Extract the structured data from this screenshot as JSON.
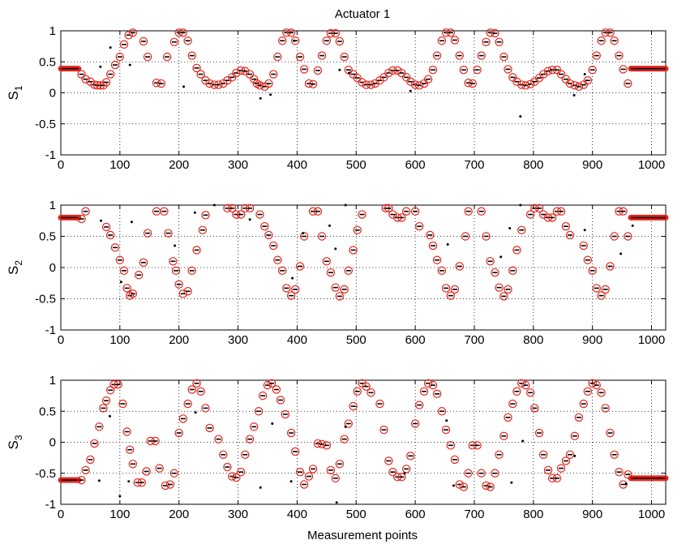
{
  "chart_data": {
    "type": "scatter",
    "title": "Actuator 1",
    "xlabel": "Measurement points",
    "xlim": [
      0,
      1024
    ],
    "x_ticks": [
      "0",
      "100",
      "200",
      "300",
      "400",
      "500",
      "600",
      "700",
      "800",
      "900",
      "1000"
    ],
    "y_ticks": [
      "-1",
      "-0.5",
      "0",
      "0.5",
      "1"
    ],
    "grid": true,
    "colors": {
      "marker_ring": "#e8231b",
      "marker_dot": "#000000",
      "line": "#000000"
    },
    "panels": [
      {
        "ylabel": "S",
        "ylabel_sub": "1",
        "ylim": [
          -1,
          1
        ],
        "plateau_start": {
          "x": [
            0,
            30
          ],
          "y": 0.39
        },
        "plateau_end": {
          "x": [
            965,
            1024
          ],
          "y": 0.39
        },
        "series": [
          {
            "marker": "ring-dot",
            "x": [
              35,
              42,
              50,
              57,
              62,
              67,
              72,
              77,
              84,
              92,
              100,
              107,
              115,
              122,
              140,
              147,
              162,
              170,
              180,
              192,
              200,
              207,
              215,
              222,
              230,
              237,
              245,
              252,
              260,
              267,
              275,
              282,
              290,
              297,
              305,
              312,
              320,
              327,
              332,
              337,
              345,
              352,
              360,
              367,
              375,
              382,
              390,
              397,
              405,
              412,
              420,
              427,
              435,
              442,
              450,
              457,
              465,
              472,
              480,
              487,
              495,
              502,
              510,
              517,
              525,
              532,
              540,
              547,
              555,
              562,
              570,
              577,
              585,
              592,
              600,
              607,
              615,
              622,
              630,
              637,
              645,
              652,
              660,
              667,
              675,
              682,
              690,
              697,
              705,
              712,
              720,
              727,
              735,
              742,
              750,
              757,
              765,
              772,
              780,
              787,
              795,
              802,
              810,
              817,
              825,
              832,
              840,
              847,
              855,
              862,
              870,
              877,
              885,
              892,
              900,
              907,
              915,
              922,
              930,
              937,
              945,
              952,
              960
            ],
            "y": [
              0.3,
              0.22,
              0.18,
              0.13,
              0.12,
              0.12,
              0.12,
              0.17,
              0.3,
              0.45,
              0.58,
              0.78,
              0.93,
              0.97,
              0.83,
              0.58,
              0.16,
              0.15,
              0.58,
              0.82,
              0.97,
              0.97,
              0.84,
              0.6,
              0.4,
              0.3,
              0.2,
              0.15,
              0.13,
              0.13,
              0.15,
              0.2,
              0.25,
              0.32,
              0.36,
              0.35,
              0.3,
              0.22,
              0.15,
              0.12,
              0.1,
              0.15,
              0.3,
              0.58,
              0.84,
              0.97,
              0.97,
              0.84,
              0.58,
              0.38,
              0.15,
              0.14,
              0.36,
              0.6,
              0.84,
              0.96,
              0.96,
              0.83,
              0.58,
              0.37,
              0.3,
              0.24,
              0.17,
              0.13,
              0.13,
              0.15,
              0.2,
              0.25,
              0.32,
              0.36,
              0.36,
              0.32,
              0.25,
              0.18,
              0.13,
              0.12,
              0.15,
              0.22,
              0.37,
              0.6,
              0.84,
              0.97,
              0.97,
              0.85,
              0.6,
              0.37,
              0.16,
              0.15,
              0.37,
              0.6,
              0.82,
              0.97,
              0.96,
              0.82,
              0.58,
              0.38,
              0.25,
              0.18,
              0.13,
              0.12,
              0.14,
              0.18,
              0.24,
              0.3,
              0.35,
              0.37,
              0.37,
              0.3,
              0.22,
              0.15,
              0.12,
              0.1,
              0.13,
              0.2,
              0.37,
              0.6,
              0.84,
              0.97,
              0.97,
              0.84,
              0.6,
              0.38,
              0.15
            ]
          },
          {
            "marker": "dot-outlier",
            "x": [
              67,
              84,
              117,
              208,
              338,
              355,
              395,
              472,
              488,
              592,
              778,
              869,
              887
            ],
            "y": [
              0.42,
              0.73,
              0.45,
              0.1,
              -0.09,
              -0.03,
              0.84,
              0.37,
              0.32,
              0.03,
              -0.38,
              -0.04,
              0.3
            ]
          }
        ]
      },
      {
        "ylabel": "S",
        "ylabel_sub": "2",
        "ylim": [
          -1,
          1
        ],
        "plateau_start": {
          "x": [
            0,
            30
          ],
          "y": 0.8
        },
        "plateau_end": {
          "x": [
            965,
            1024
          ],
          "y": 0.8
        },
        "series": [
          {
            "marker": "ring-dot",
            "x": [
              35,
              42,
              77,
              84,
              92,
              100,
              107,
              112,
              117,
              122,
              132,
              140,
              147,
              162,
              175,
              182,
              190,
              195,
              200,
              207,
              215,
              222,
              230,
              240,
              245,
              282,
              290,
              297,
              305,
              312,
              320,
              337,
              345,
              352,
              360,
              367,
              375,
              382,
              390,
              397,
              405,
              412,
              427,
              435,
              442,
              450,
              457,
              465,
              472,
              480,
              487,
              495,
              502,
              510,
              550,
              555,
              562,
              570,
              577,
              585,
              600,
              607,
              625,
              630,
              637,
              645,
              652,
              660,
              667,
              675,
              685,
              690,
              712,
              720,
              727,
              735,
              742,
              750,
              757,
              765,
              772,
              780,
              795,
              802,
              810,
              817,
              825,
              832,
              840,
              847,
              855,
              862,
              885,
              892,
              900,
              907,
              915,
              922,
              930,
              937,
              945,
              952,
              960
            ],
            "y": [
              0.78,
              0.9,
              0.65,
              0.52,
              0.32,
              0.12,
              -0.05,
              -0.33,
              -0.45,
              -0.42,
              -0.12,
              0.08,
              0.55,
              0.9,
              0.9,
              0.55,
              0.1,
              -0.05,
              -0.27,
              -0.42,
              -0.38,
              -0.05,
              0.28,
              0.6,
              0.84,
              0.95,
              0.95,
              0.85,
              0.85,
              0.95,
              0.95,
              0.85,
              0.66,
              0.52,
              0.35,
              0.12,
              -0.05,
              -0.33,
              -0.45,
              -0.35,
              0.02,
              0.5,
              0.9,
              0.9,
              0.5,
              0.1,
              -0.08,
              -0.32,
              -0.46,
              -0.35,
              -0.05,
              0.28,
              0.6,
              0.85,
              0.95,
              0.95,
              0.85,
              0.8,
              0.8,
              0.9,
              0.9,
              0.66,
              0.52,
              0.35,
              0.12,
              -0.05,
              -0.33,
              -0.45,
              -0.35,
              0.02,
              0.5,
              0.9,
              0.9,
              0.5,
              0.1,
              -0.08,
              -0.32,
              -0.46,
              -0.35,
              -0.05,
              0.28,
              0.6,
              0.85,
              0.95,
              0.95,
              0.85,
              0.8,
              0.8,
              0.9,
              0.9,
              0.66,
              0.52,
              0.35,
              0.12,
              -0.05,
              -0.33,
              -0.45,
              -0.35,
              0.02,
              0.5,
              0.9,
              0.9,
              0.5
            ]
          },
          {
            "marker": "dot-outlier",
            "x": [
              68,
              102,
              120,
              193,
              227,
              260,
              320,
              392,
              410,
              455,
              465,
              482,
              655,
              745,
              760,
              778,
              887,
              948,
              968
            ],
            "y": [
              0.75,
              -0.23,
              0.73,
              0.35,
              0.88,
              1.0,
              0.77,
              -0.17,
              0.55,
              0.67,
              0.3,
              1.0,
              0.37,
              0.17,
              0.63,
              1.0,
              0.6,
              0.22,
              0.67
            ]
          }
        ]
      },
      {
        "ylabel": "S",
        "ylabel_sub": "3",
        "ylim": [
          -1,
          1
        ],
        "plateau_start": {
          "x": [
            0,
            30
          ],
          "y": -0.61
        },
        "plateau_end": {
          "x": [
            965,
            1024
          ],
          "y": -0.58
        },
        "series": [
          {
            "marker": "ring-dot",
            "x": [
              35,
              42,
              50,
              57,
              65,
              72,
              77,
              84,
              90,
              97,
              105,
              112,
              117,
              122,
              130,
              137,
              145,
              152,
              160,
              167,
              177,
              185,
              192,
              200,
              207,
              215,
              222,
              230,
              237,
              245,
              252,
              267,
              275,
              282,
              290,
              297,
              305,
              312,
              320,
              327,
              335,
              342,
              350,
              357,
              365,
              372,
              380,
              390,
              397,
              405,
              412,
              420,
              427,
              435,
              442,
              450,
              457,
              465,
              472,
              480,
              487,
              495,
              502,
              510,
              517,
              525,
              540,
              547,
              555,
              562,
              570,
              577,
              585,
              592,
              600,
              607,
              615,
              622,
              630,
              637,
              645,
              652,
              660,
              667,
              675,
              682,
              690,
              697,
              705,
              712,
              720,
              727,
              735,
              742,
              750,
              757,
              765,
              772,
              780,
              787,
              795,
              802,
              810,
              817,
              825,
              832,
              840,
              847,
              855,
              862,
              870,
              877,
              885,
              892,
              900,
              907,
              915,
              922,
              930,
              937,
              945,
              952,
              960
            ],
            "y": [
              -0.61,
              -0.45,
              -0.28,
              -0.02,
              0.25,
              0.55,
              0.67,
              0.84,
              0.93,
              0.93,
              0.62,
              0.17,
              -0.12,
              -0.35,
              -0.65,
              -0.65,
              -0.47,
              0.02,
              0.02,
              -0.42,
              -0.7,
              -0.68,
              -0.5,
              0.15,
              0.38,
              0.62,
              0.85,
              0.95,
              0.82,
              0.55,
              0.23,
              0.05,
              -0.2,
              -0.4,
              -0.55,
              -0.57,
              -0.48,
              -0.2,
              0.05,
              0.25,
              0.5,
              0.75,
              0.92,
              0.95,
              0.85,
              0.68,
              0.45,
              0.15,
              -0.15,
              -0.48,
              -0.68,
              -0.55,
              -0.43,
              -0.02,
              -0.03,
              -0.05,
              -0.45,
              -0.58,
              -0.35,
              0.05,
              0.3,
              0.58,
              0.82,
              0.95,
              0.9,
              0.8,
              0.62,
              0.2,
              -0.3,
              -0.48,
              -0.56,
              -0.56,
              -0.43,
              -0.22,
              0.3,
              0.6,
              0.82,
              0.95,
              0.92,
              0.78,
              0.5,
              0.2,
              -0.05,
              -0.28,
              -0.68,
              -0.72,
              -0.5,
              -0.05,
              -0.05,
              -0.5,
              -0.7,
              -0.72,
              -0.5,
              -0.2,
              0.1,
              0.4,
              0.62,
              0.82,
              0.95,
              0.92,
              0.8,
              0.55,
              0.15,
              -0.2,
              -0.45,
              -0.58,
              -0.58,
              -0.42,
              -0.3,
              -0.2,
              0.1,
              0.4,
              0.62,
              0.82,
              0.95,
              0.92,
              0.8,
              0.55,
              0.15,
              -0.2,
              -0.48,
              -0.68,
              -0.52
            ]
          },
          {
            "marker": "dot-outlier",
            "x": [
              65,
              83,
              100,
              115,
              228,
              338,
              358,
              390,
              467,
              482,
              582,
              653,
              665,
              763,
              782,
              870,
              957
            ],
            "y": [
              -0.62,
              0.42,
              -0.87,
              -0.63,
              0.48,
              -0.73,
              0.3,
              -0.63,
              -0.97,
              0.25,
              -0.5,
              0.35,
              -0.7,
              -0.65,
              0.02,
              -0.22,
              -0.67
            ]
          }
        ]
      }
    ]
  }
}
